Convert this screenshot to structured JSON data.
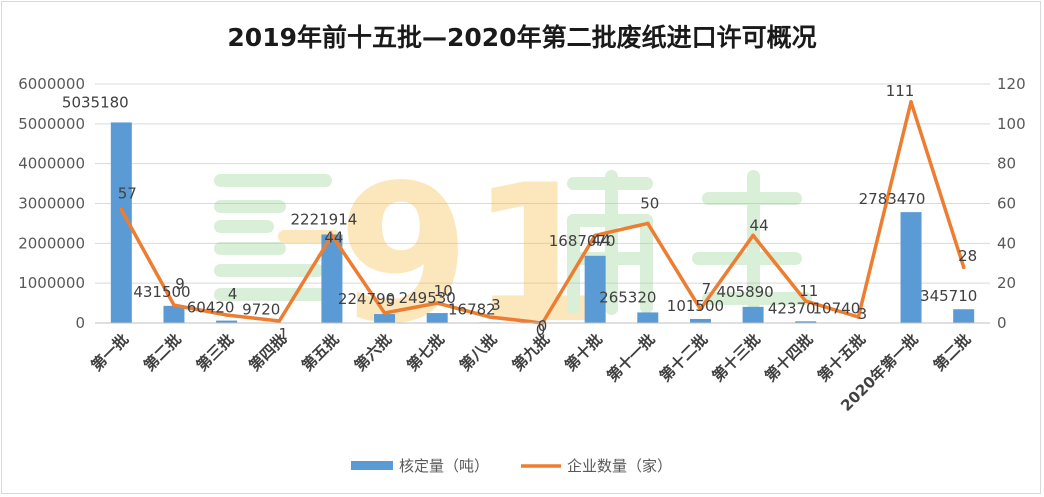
{
  "chart_data": {
    "type": "bar",
    "title": "2019年前十五批—2020年第二批废纸进口许可概况",
    "categories": [
      "第一批",
      "第二批",
      "第三批",
      "第四批",
      "第五批",
      "第六批",
      "第七批",
      "第八批",
      "第九批",
      "第十批",
      "第十一批",
      "第十二批",
      "第十三批",
      "第十四批",
      "第十五批",
      "2020年第一批",
      "第二批"
    ],
    "series": [
      {
        "name": "核定量（吨）",
        "kind": "bar",
        "axis": "left",
        "color": "#5b9bd5",
        "values": [
          5035180,
          431500,
          60420,
          9720,
          2221914,
          224790,
          249530,
          16782,
          0,
          1687070,
          265320,
          101500,
          405890,
          42370,
          10740,
          2783470,
          345710
        ]
      },
      {
        "name": "企业数量（家）",
        "kind": "line",
        "axis": "right",
        "color": "#ed7d31",
        "values": [
          57,
          9,
          4,
          1,
          44,
          5,
          10,
          3,
          0,
          44,
          50,
          7,
          44,
          11,
          3,
          111,
          28
        ]
      }
    ],
    "ylim_left": [
      0,
      6000000
    ],
    "yticks_left": [
      0,
      1000000,
      2000000,
      3000000,
      4000000,
      5000000,
      6000000
    ],
    "ylim_right": [
      0,
      120
    ],
    "yticks_right": [
      0,
      20,
      40,
      60,
      80,
      100,
      120
    ],
    "grid": true,
    "legend_position": "bottom",
    "watermark": "91再生"
  }
}
